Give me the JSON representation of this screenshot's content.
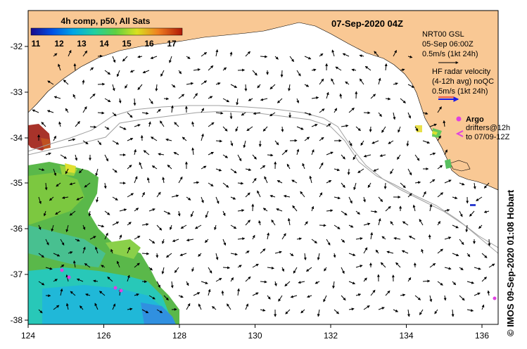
{
  "header": {
    "colorbar_title": "4h comp, p50, All Sats",
    "colorbar_ticks": [
      "11",
      "12",
      "13",
      "14",
      "15",
      "16",
      "17"
    ],
    "date_label": "07-Sep-2020 04Z"
  },
  "legend": {
    "gsl_line1": "NRT00 GSL",
    "gsl_line2": "05-Sep 06:00Z",
    "gsl_line3": "0.5m/s (1kt 24h)",
    "hf_line1": "HF radar velocity",
    "hf_line2": "(4-12h avg) noQC",
    "hf_line3": "0.5m/s (1kt 24h)",
    "argo_label": "Argo",
    "drifters_line1": "drifters@12h",
    "drifters_line2": "to 07/09-12Z"
  },
  "axes": {
    "x_ticks": [
      "124",
      "126",
      "128",
      "130",
      "132",
      "134",
      "136"
    ],
    "y_ticks": [
      "-32",
      "-33",
      "-34",
      "-35",
      "-36",
      "-37",
      "-38"
    ]
  },
  "credit": "© IMOS 09-Sep-2020 01:08 Hobart",
  "colors": {
    "land": "#f9c894",
    "arrow": "#000000",
    "hf_arrow": "#1a1ae6",
    "argo": "#e040e0",
    "bathymetry": "#a0a0a0"
  }
}
